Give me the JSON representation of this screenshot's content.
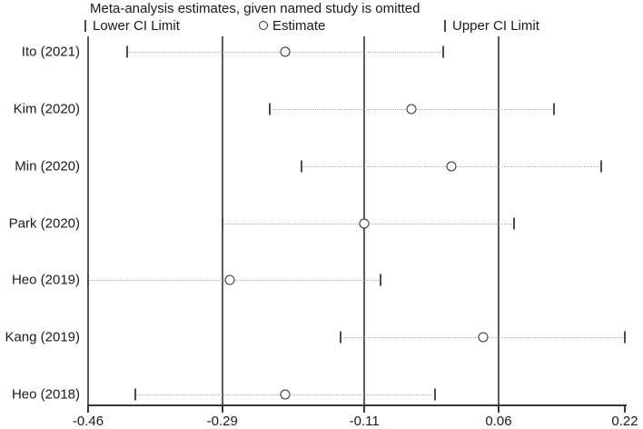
{
  "chart_data": {
    "type": "scatter",
    "title": "Meta-analysis estimates, given named study is omitted",
    "xlabel": "",
    "ylabel": "",
    "xlim": [
      -0.46,
      0.22
    ],
    "x_ticks": [
      -0.46,
      -0.29,
      -0.11,
      0.06,
      0.22
    ],
    "x_tick_labels": [
      "-0.46",
      "-0.29",
      "-0.11",
      "0.06",
      "0.22"
    ],
    "reference_lines": [
      -0.29,
      -0.11,
      0.06
    ],
    "frame_line": -0.46,
    "grid": false,
    "legend_position": "top",
    "legend": [
      "Lower CI Limit",
      "Estimate",
      "Upper CI Limit"
    ],
    "studies": [
      {
        "label": "Ito (2021)",
        "lower": -0.41,
        "estimate": -0.21,
        "upper": -0.01
      },
      {
        "label": "Kim (2020)",
        "lower": -0.23,
        "estimate": -0.05,
        "upper": 0.13
      },
      {
        "label": "Min (2020)",
        "lower": -0.19,
        "estimate": 0.0,
        "upper": 0.19
      },
      {
        "label": "Park (2020)",
        "lower": -0.29,
        "estimate": -0.11,
        "upper": 0.08
      },
      {
        "label": "Heo (2019)",
        "lower": -0.46,
        "estimate": -0.28,
        "upper": -0.09
      },
      {
        "label": "Kang (2019)",
        "lower": -0.14,
        "estimate": 0.04,
        "upper": 0.22
      },
      {
        "label": "Heo (2018)",
        "lower": -0.4,
        "estimate": -0.21,
        "upper": -0.02
      }
    ]
  },
  "colors": {
    "text": "#1a1a1a",
    "axis": "#383838",
    "reference_line": "#5c5c5c",
    "ci_dotted_line": "#aeaeae",
    "marker_outline": "#2e2e2e",
    "background": "#ffffff"
  }
}
